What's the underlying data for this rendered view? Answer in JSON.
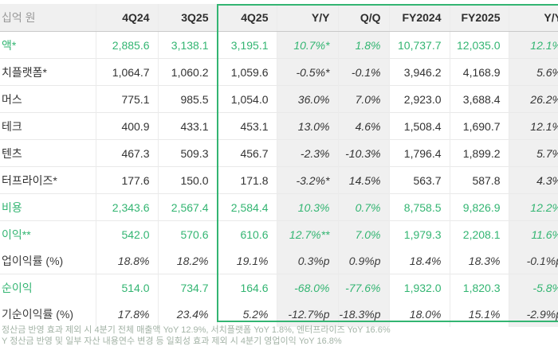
{
  "colors": {
    "accent_green": "#33b572",
    "footnote_text": "#a3b3a6",
    "header_bg": "#f0f0f0",
    "shaded_column_bg": "#f0f0f0",
    "text_dark": "#333333",
    "unit_label_gray": "#9a9a9a"
  },
  "chart_data": {
    "type": "table",
    "unit": "십억 원",
    "columns": [
      "4Q24",
      "3Q25",
      "4Q25",
      "Y/Y",
      "Q/Q",
      "FY2024",
      "FY2025",
      "Y/Y"
    ],
    "rows": [
      {
        "label": "액*",
        "accent": true,
        "rate_row": false,
        "values": [
          "2,885.6",
          "3,138.1",
          "3,195.1",
          "10.7%*",
          "1.8%",
          "10,737.7",
          "12,035.0",
          "12.1%"
        ]
      },
      {
        "label": "치플랫폼*",
        "accent": false,
        "rate_row": false,
        "values": [
          "1,064.7",
          "1,060.2",
          "1,059.6",
          "-0.5%*",
          "-0.1%",
          "3,946.2",
          "4,168.9",
          "5.6%"
        ]
      },
      {
        "label": "머스",
        "accent": false,
        "rate_row": false,
        "values": [
          "775.1",
          "985.5",
          "1,054.0",
          "36.0%",
          "7.0%",
          "2,923.0",
          "3,688.4",
          "26.2%"
        ]
      },
      {
        "label": "테크",
        "accent": false,
        "rate_row": false,
        "values": [
          "400.9",
          "433.1",
          "453.1",
          "13.0%",
          "4.6%",
          "1,508.4",
          "1,690.7",
          "12.1%"
        ]
      },
      {
        "label": "텐츠",
        "accent": false,
        "rate_row": false,
        "values": [
          "467.3",
          "509.3",
          "456.7",
          "-2.3%",
          "-10.3%",
          "1,796.4",
          "1,899.2",
          "5.7%"
        ]
      },
      {
        "label": "터프라이즈*",
        "accent": false,
        "rate_row": false,
        "values": [
          "177.6",
          "150.0",
          "171.8",
          "-3.2%*",
          "14.5%",
          "563.7",
          "587.8",
          "4.3%"
        ]
      },
      {
        "label": "비용",
        "accent": true,
        "rate_row": false,
        "values": [
          "2,343.6",
          "2,567.4",
          "2,584.4",
          "10.3%",
          "0.7%",
          "8,758.5",
          "9,826.9",
          "12.2%"
        ]
      },
      {
        "label": "이익**",
        "accent": true,
        "rate_row": false,
        "values": [
          "542.0",
          "570.6",
          "610.6",
          "12.7%**",
          "7.0%",
          "1,979.3",
          "2,208.1",
          "11.6%"
        ]
      },
      {
        "label": "업이익률 (%)",
        "accent": false,
        "rate_row": true,
        "values": [
          "18.8%",
          "18.2%",
          "19.1%",
          "0.3%p",
          "0.9%p",
          "18.4%",
          "18.3%",
          "-0.1%p"
        ]
      },
      {
        "label": "순이익",
        "accent": true,
        "rate_row": false,
        "values": [
          "514.0",
          "734.7",
          "164.6",
          "-68.0%",
          "-77.6%",
          "1,932.0",
          "1,820.3",
          "-5.8%"
        ]
      },
      {
        "label": "기순이익률 (%)",
        "accent": false,
        "rate_row": true,
        "values": [
          "17.8%",
          "23.4%",
          "5.2%",
          "-12.7%p",
          "-18.3%p",
          "18.0%",
          "15.1%",
          "-2.9%p"
        ]
      }
    ],
    "footnotes": [
      "정산금 반영 효과 제외 시 4분기 전체 매출액 YoY 12.9%, 서치플랫폼 YoY 1.8%, 엔터프라이즈 YoY 16.6%",
      "Y 정산금 반영 및 일부 자산 내용연수 변경 등 일회성 효과 제외 시 4분기 영업이익 YoY 16.8%"
    ]
  }
}
